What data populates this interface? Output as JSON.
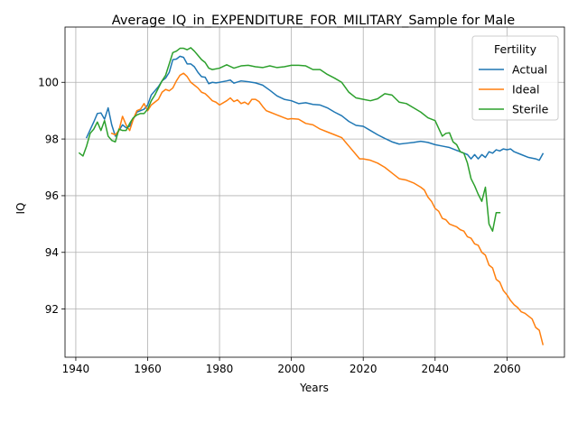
{
  "chart_data": {
    "type": "line",
    "title": "Average_IQ_in_EXPENDITURE_FOR_MILITARY_Sample for Male",
    "xlabel": "Years",
    "ylabel": "IQ",
    "xlim": [
      1937,
      2076
    ],
    "ylim": [
      90.3,
      101.95
    ],
    "xticks": [
      1940,
      1960,
      1980,
      2000,
      2020,
      2040,
      2060
    ],
    "yticks": [
      92,
      94,
      96,
      98,
      100
    ],
    "grid": true,
    "legend": {
      "title": "Fertility",
      "position": "top-right"
    },
    "series": [
      {
        "name": "Actual",
        "color": "#1f77b4",
        "x": [
          1943,
          1945,
          1946,
          1947,
          1948,
          1949,
          1950,
          1951,
          1952,
          1953,
          1954,
          1955,
          1956,
          1957,
          1958,
          1959,
          1960,
          1961,
          1962,
          1963,
          1964,
          1965,
          1966,
          1967,
          1968,
          1969,
          1970,
          1971,
          1972,
          1973,
          1974,
          1975,
          1976,
          1977,
          1978,
          1979,
          1980,
          1982,
          1983,
          1984,
          1986,
          1988,
          1989,
          1990,
          1992,
          1994,
          1996,
          1998,
          2000,
          2002,
          2004,
          2006,
          2008,
          2010,
          2012,
          2014,
          2016,
          2018,
          2020,
          2022,
          2024,
          2026,
          2028,
          2030,
          2032,
          2034,
          2036,
          2038,
          2040,
          2042,
          2044,
          2046,
          2048,
          2049,
          2050,
          2051,
          2052,
          2053,
          2054,
          2055,
          2056,
          2057,
          2058,
          2059,
          2060,
          2061,
          2062,
          2064,
          2066,
          2068,
          2069,
          2070
        ],
        "y": [
          98.05,
          98.6,
          98.9,
          98.92,
          98.7,
          99.1,
          98.5,
          98.1,
          98.3,
          98.5,
          98.4,
          98.45,
          98.7,
          98.95,
          99.0,
          99.05,
          99.2,
          99.55,
          99.7,
          99.85,
          100.05,
          100.15,
          100.35,
          100.8,
          100.82,
          100.92,
          100.88,
          100.65,
          100.65,
          100.55,
          100.35,
          100.2,
          100.18,
          99.95,
          100.0,
          99.98,
          100.0,
          100.05,
          100.08,
          99.97,
          100.05,
          100.02,
          100.0,
          99.98,
          99.9,
          99.72,
          99.52,
          99.4,
          99.35,
          99.25,
          99.28,
          99.22,
          99.2,
          99.1,
          98.95,
          98.82,
          98.62,
          98.48,
          98.45,
          98.3,
          98.15,
          98.02,
          97.9,
          97.82,
          97.85,
          97.88,
          97.92,
          97.88,
          97.8,
          97.75,
          97.7,
          97.6,
          97.5,
          97.45,
          97.3,
          97.45,
          97.3,
          97.45,
          97.35,
          97.55,
          97.5,
          97.62,
          97.58,
          97.65,
          97.62,
          97.65,
          97.55,
          97.45,
          97.35,
          97.3,
          97.25,
          97.48
        ]
      },
      {
        "name": "Ideal",
        "color": "#ff7f0e",
        "x": [
          1950,
          1951,
          1952,
          1953,
          1954,
          1955,
          1956,
          1957,
          1958,
          1959,
          1960,
          1961,
          1962,
          1963,
          1964,
          1965,
          1966,
          1967,
          1968,
          1969,
          1970,
          1971,
          1972,
          1973,
          1974,
          1975,
          1976,
          1977,
          1978,
          1979,
          1980,
          1982,
          1983,
          1984,
          1985,
          1986,
          1987,
          1988,
          1989,
          1990,
          1991,
          1992,
          1993,
          1994,
          1996,
          1998,
          1999,
          2000,
          2002,
          2004,
          2006,
          2008,
          2010,
          2012,
          2014,
          2016,
          2018,
          2019,
          2020,
          2022,
          2024,
          2026,
          2028,
          2030,
          2032,
          2034,
          2036,
          2037,
          2038,
          2039,
          2040,
          2041,
          2042,
          2043,
          2044,
          2045,
          2046,
          2047,
          2048,
          2049,
          2050,
          2051,
          2052,
          2053,
          2054,
          2055,
          2056,
          2057,
          2058,
          2059,
          2060,
          2061,
          2062,
          2063,
          2064,
          2065,
          2066,
          2067,
          2068,
          2069,
          2070
        ],
        "y": [
          98.2,
          98.15,
          98.3,
          98.8,
          98.5,
          98.3,
          98.7,
          99.0,
          99.05,
          99.25,
          99.0,
          99.2,
          99.3,
          99.4,
          99.65,
          99.75,
          99.7,
          99.8,
          100.05,
          100.25,
          100.32,
          100.2,
          100.0,
          99.9,
          99.8,
          99.65,
          99.6,
          99.48,
          99.35,
          99.3,
          99.2,
          99.35,
          99.45,
          99.32,
          99.38,
          99.25,
          99.3,
          99.22,
          99.4,
          99.4,
          99.32,
          99.15,
          99.0,
          98.95,
          98.85,
          98.75,
          98.7,
          98.72,
          98.7,
          98.55,
          98.5,
          98.35,
          98.25,
          98.15,
          98.05,
          97.75,
          97.45,
          97.3,
          97.3,
          97.25,
          97.15,
          97.0,
          96.8,
          96.6,
          96.55,
          96.45,
          96.3,
          96.2,
          95.95,
          95.8,
          95.55,
          95.45,
          95.2,
          95.15,
          95.0,
          94.95,
          94.9,
          94.8,
          94.75,
          94.55,
          94.5,
          94.3,
          94.25,
          94.0,
          93.9,
          93.55,
          93.45,
          93.05,
          92.95,
          92.65,
          92.5,
          92.3,
          92.15,
          92.05,
          91.9,
          91.85,
          91.75,
          91.65,
          91.35,
          91.25,
          90.75
        ]
      },
      {
        "name": "Sterile",
        "color": "#2ca02c",
        "x": [
          1941,
          1942,
          1943,
          1944,
          1945,
          1946,
          1947,
          1948,
          1949,
          1950,
          1951,
          1952,
          1953,
          1954,
          1955,
          1956,
          1957,
          1958,
          1959,
          1960,
          1961,
          1962,
          1963,
          1964,
          1965,
          1966,
          1967,
          1968,
          1969,
          1970,
          1971,
          1972,
          1973,
          1974,
          1975,
          1976,
          1977,
          1978,
          1980,
          1982,
          1984,
          1986,
          1988,
          1990,
          1992,
          1994,
          1996,
          1998,
          2000,
          2002,
          2004,
          2006,
          2008,
          2010,
          2012,
          2014,
          2016,
          2018,
          2020,
          2022,
          2024,
          2026,
          2028,
          2030,
          2032,
          2034,
          2036,
          2038,
          2040,
          2042,
          2043,
          2044,
          2045,
          2046,
          2047,
          2048,
          2049,
          2050,
          2051,
          2052,
          2053,
          2054,
          2055,
          2056,
          2057,
          2058
        ],
        "y": [
          97.5,
          97.4,
          97.75,
          98.2,
          98.35,
          98.6,
          98.3,
          98.65,
          98.1,
          97.95,
          97.9,
          98.35,
          98.3,
          98.3,
          98.55,
          98.75,
          98.85,
          98.9,
          98.9,
          99.05,
          99.35,
          99.55,
          99.8,
          100.05,
          100.25,
          100.65,
          101.05,
          101.1,
          101.2,
          101.2,
          101.15,
          101.22,
          101.1,
          100.95,
          100.8,
          100.7,
          100.5,
          100.45,
          100.5,
          100.62,
          100.5,
          100.58,
          100.6,
          100.55,
          100.52,
          100.58,
          100.52,
          100.55,
          100.6,
          100.6,
          100.58,
          100.45,
          100.45,
          100.28,
          100.15,
          100.0,
          99.65,
          99.45,
          99.4,
          99.35,
          99.42,
          99.6,
          99.55,
          99.3,
          99.25,
          99.1,
          98.95,
          98.75,
          98.65,
          98.1,
          98.2,
          98.22,
          97.9,
          97.8,
          97.55,
          97.5,
          97.15,
          96.6,
          96.35,
          96.05,
          95.8,
          96.3,
          95.0,
          94.75,
          95.4,
          95.4
        ]
      }
    ]
  }
}
